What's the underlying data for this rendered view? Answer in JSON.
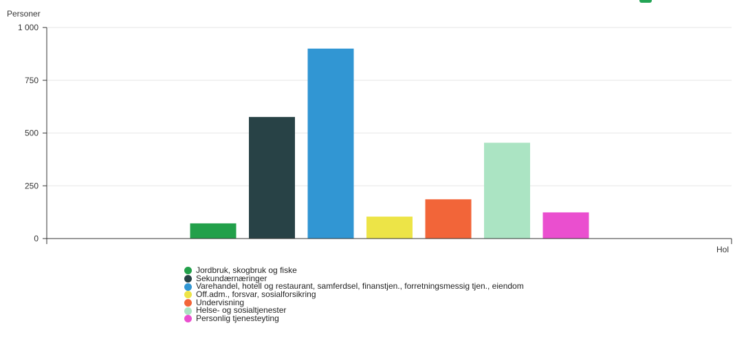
{
  "chart_data": {
    "type": "bar",
    "ylabel": "Personer",
    "xlabel": "Hol",
    "ylim": [
      0,
      1000
    ],
    "yticks": [
      0,
      250,
      500,
      750,
      1000
    ],
    "ytick_labels": [
      "0",
      "250",
      "500",
      "750",
      "1 000"
    ],
    "grid": true,
    "legend_position": "bottom-left",
    "categories": [
      "Jordbruk, skogbruk og fiske",
      "Sekundærnæringer",
      "Varehandel, hotell og restaurant, samferdsel, finanstjen., forretningsmessig tjen., eiendom",
      "Off.adm., forsvar, sosialforsikring",
      "Undervisning",
      "Helse- og sosialtjenester",
      "Personlig tjenesteyting"
    ],
    "values": [
      72,
      576,
      900,
      104,
      186,
      454,
      124
    ],
    "colors": [
      "#22a04a",
      "#284246",
      "#3196d3",
      "#ede447",
      "#f26539",
      "#abe4c3",
      "#ea4fcf"
    ]
  },
  "widgets": {
    "corner_icon": "green-tab-icon",
    "corner_color": "#23a455"
  }
}
